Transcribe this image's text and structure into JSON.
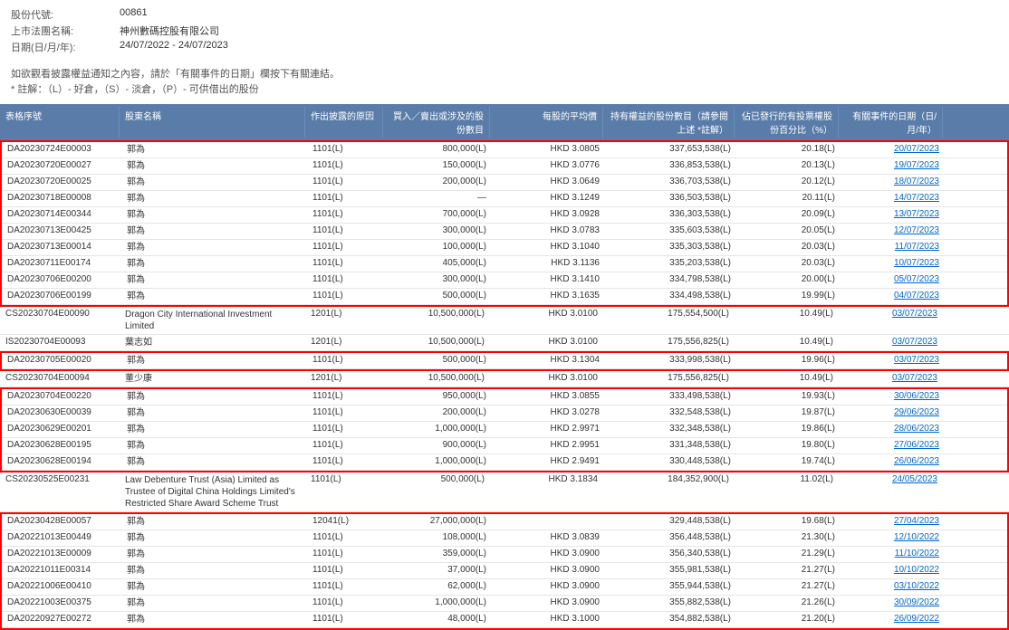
{
  "header": {
    "stock_code_label": "股份代號:",
    "stock_code_value": "00861",
    "company_name_label": "上市法團名稱:",
    "company_name_value": "神州數碼控股有限公司",
    "date_label": "日期(日/月/年):",
    "date_value": "24/07/2022 - 24/07/2023"
  },
  "note": {
    "line1": "如欲觀看披露權益通知之內容，請於「有關事件的日期」欄按下有關連結。",
    "line2": "* 註解：（L）- 好倉，（S）- 淡倉，（P）- 可供借出的股份"
  },
  "table": {
    "headers": {
      "col1": "表格序號",
      "col2": "股東名稱",
      "col3": "作出披露的原因",
      "col4": "買入／賣出或涉及的股份數目",
      "col5": "每股的平均價",
      "col6": "持有權益的股份數目（請參閱上述 *註解）",
      "col7": "佔已發行的有投票權股份百分比（%）",
      "col8": "有關事件的日期（日/月/年）"
    },
    "rows": [
      {
        "id": "DA20230724E00003",
        "name": "郭為",
        "reason": "1101(L)",
        "shares": "800,000(L)",
        "price": "HKD 3.0805",
        "holding": "337,653,538(L)",
        "pct": "20.18(L)",
        "date": "20/07/2023",
        "hl": "g1"
      },
      {
        "id": "DA20230720E00027",
        "name": "郭為",
        "reason": "1101(L)",
        "shares": "150,000(L)",
        "price": "HKD 3.0776",
        "holding": "336,853,538(L)",
        "pct": "20.13(L)",
        "date": "19/07/2023",
        "hl": "g1"
      },
      {
        "id": "DA20230720E00025",
        "name": "郭為",
        "reason": "1101(L)",
        "shares": "200,000(L)",
        "price": "HKD 3.0649",
        "holding": "336,703,538(L)",
        "pct": "20.12(L)",
        "date": "18/07/2023",
        "hl": "g1"
      },
      {
        "id": "DA20230718E00008",
        "name": "郭為",
        "reason": "1101(L)",
        "shares": "—",
        "price": "HKD 3.1249",
        "holding": "336,503,538(L)",
        "pct": "20.11(L)",
        "date": "14/07/2023",
        "hl": "g1"
      },
      {
        "id": "DA20230714E00344",
        "name": "郭為",
        "reason": "1101(L)",
        "shares": "700,000(L)",
        "price": "HKD 3.0928",
        "holding": "336,303,538(L)",
        "pct": "20.09(L)",
        "date": "13/07/2023",
        "hl": "g1"
      },
      {
        "id": "DA20230713E00425",
        "name": "郭為",
        "reason": "1101(L)",
        "shares": "300,000(L)",
        "price": "HKD 3.0783",
        "holding": "335,603,538(L)",
        "pct": "20.05(L)",
        "date": "12/07/2023",
        "hl": "g1"
      },
      {
        "id": "DA20230713E00014",
        "name": "郭為",
        "reason": "1101(L)",
        "shares": "100,000(L)",
        "price": "HKD 3.1040",
        "holding": "335,303,538(L)",
        "pct": "20.03(L)",
        "date": "11/07/2023",
        "hl": "g1"
      },
      {
        "id": "DA20230711E00174",
        "name": "郭為",
        "reason": "1101(L)",
        "shares": "405,000(L)",
        "price": "HKD 3.1136",
        "holding": "335,203,538(L)",
        "pct": "20.03(L)",
        "date": "10/07/2023",
        "hl": "g1"
      },
      {
        "id": "DA20230706E00200",
        "name": "郭為",
        "reason": "1101(L)",
        "shares": "300,000(L)",
        "price": "HKD 3.1410",
        "holding": "334,798,538(L)",
        "pct": "20.00(L)",
        "date": "05/07/2023",
        "hl": "g1"
      },
      {
        "id": "DA20230706E00199",
        "name": "郭為",
        "reason": "1101(L)",
        "shares": "500,000(L)",
        "price": "HKD 3.1635",
        "holding": "334,498,538(L)",
        "pct": "19.99(L)",
        "date": "04/07/2023",
        "hl": "g1"
      },
      {
        "id": "CS20230704E00090",
        "name": "Dragon City International Investment Limited",
        "reason": "1201(L)",
        "shares": "10,500,000(L)",
        "price": "HKD 3.0100",
        "holding": "175,554,500(L)",
        "pct": "10.49(L)",
        "date": "03/07/2023",
        "hl": ""
      },
      {
        "id": "IS20230704E00093",
        "name": "葉志如",
        "reason": "1201(L)",
        "shares": "10,500,000(L)",
        "price": "HKD 3.0100",
        "holding": "175,556,825(L)",
        "pct": "10.49(L)",
        "date": "03/07/2023",
        "hl": ""
      },
      {
        "id": "DA20230705E00020",
        "name": "郭為",
        "reason": "1101(L)",
        "shares": "500,000(L)",
        "price": "HKD 3.1304",
        "holding": "333,998,538(L)",
        "pct": "19.96(L)",
        "date": "03/07/2023",
        "hl": "s1"
      },
      {
        "id": "CS20230704E00094",
        "name": "董少康",
        "reason": "1201(L)",
        "shares": "10,500,000(L)",
        "price": "HKD 3.0100",
        "holding": "175,556,825(L)",
        "pct": "10.49(L)",
        "date": "03/07/2023",
        "hl": ""
      },
      {
        "id": "DA20230704E00220",
        "name": "郭為",
        "reason": "1101(L)",
        "shares": "950,000(L)",
        "price": "HKD 3.0855",
        "holding": "333,498,538(L)",
        "pct": "19.93(L)",
        "date": "30/06/2023",
        "hl": "g2"
      },
      {
        "id": "DA20230630E00039",
        "name": "郭為",
        "reason": "1101(L)",
        "shares": "200,000(L)",
        "price": "HKD 3.0278",
        "holding": "332,548,538(L)",
        "pct": "19.87(L)",
        "date": "29/06/2023",
        "hl": "g2"
      },
      {
        "id": "DA20230629E00201",
        "name": "郭為",
        "reason": "1101(L)",
        "shares": "1,000,000(L)",
        "price": "HKD 2.9971",
        "holding": "332,348,538(L)",
        "pct": "19.86(L)",
        "date": "28/06/2023",
        "hl": "g2"
      },
      {
        "id": "DA20230628E00195",
        "name": "郭為",
        "reason": "1101(L)",
        "shares": "900,000(L)",
        "price": "HKD 2.9951",
        "holding": "331,348,538(L)",
        "pct": "19.80(L)",
        "date": "27/06/2023",
        "hl": "g2"
      },
      {
        "id": "DA20230628E00194",
        "name": "郭為",
        "reason": "1101(L)",
        "shares": "1,000,000(L)",
        "price": "HKD 2.9491",
        "holding": "330,448,538(L)",
        "pct": "19.74(L)",
        "date": "26/06/2023",
        "hl": "g2"
      },
      {
        "id": "CS20230525E00231",
        "name": "Law Debenture Trust (Asia) Limited as Trustee of Digital China Holdings Limited's Restricted Share Award Scheme Trust",
        "reason": "1101(L)",
        "shares": "500,000(L)",
        "price": "HKD 3.1834",
        "holding": "184,352,900(L)",
        "pct": "11.02(L)",
        "date": "24/05/2023",
        "hl": ""
      },
      {
        "id": "DA20230428E00057",
        "name": "郭為",
        "reason": "12041(L)",
        "shares": "27,000,000(L)",
        "price": "",
        "holding": "329,448,538(L)",
        "pct": "19.68(L)",
        "date": "27/04/2023",
        "hl": "g3"
      },
      {
        "id": "DA20221013E00449",
        "name": "郭為",
        "reason": "1101(L)",
        "shares": "108,000(L)",
        "price": "HKD 3.0839",
        "holding": "356,448,538(L)",
        "pct": "21.30(L)",
        "date": "12/10/2022",
        "hl": "g3"
      },
      {
        "id": "DA20221013E00009",
        "name": "郭為",
        "reason": "1101(L)",
        "shares": "359,000(L)",
        "price": "HKD 3.0900",
        "holding": "356,340,538(L)",
        "pct": "21.29(L)",
        "date": "11/10/2022",
        "hl": "g3"
      },
      {
        "id": "DA20221011E00314",
        "name": "郭為",
        "reason": "1101(L)",
        "shares": "37,000(L)",
        "price": "HKD 3.0900",
        "holding": "355,981,538(L)",
        "pct": "21.27(L)",
        "date": "10/10/2022",
        "hl": "g3"
      },
      {
        "id": "DA20221006E00410",
        "name": "郭為",
        "reason": "1101(L)",
        "shares": "62,000(L)",
        "price": "HKD 3.0900",
        "holding": "355,944,538(L)",
        "pct": "21.27(L)",
        "date": "03/10/2022",
        "hl": "g3"
      },
      {
        "id": "DA20221003E00375",
        "name": "郭為",
        "reason": "1101(L)",
        "shares": "1,000,000(L)",
        "price": "HKD 3.0900",
        "holding": "355,882,538(L)",
        "pct": "21.26(L)",
        "date": "30/09/2022",
        "hl": "g3"
      },
      {
        "id": "DA20220927E00272",
        "name": "郭為",
        "reason": "1101(L)",
        "shares": "48,000(L)",
        "price": "HKD 3.1000",
        "holding": "354,882,538(L)",
        "pct": "21.20(L)",
        "date": "26/09/2022",
        "hl": "g3"
      }
    ]
  },
  "styling": {
    "header_bg": "#5a7ca8",
    "header_fg": "#ffffff",
    "highlight_border": "#ff0000",
    "link_color": "#0066cc",
    "row_border": "#e5e5e5",
    "text_color": "#333333"
  }
}
